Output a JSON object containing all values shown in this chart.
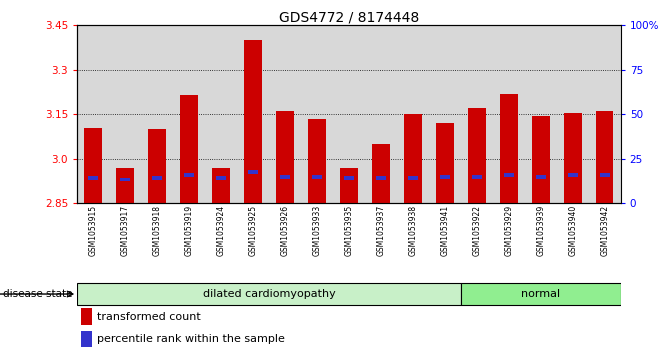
{
  "title": "GDS4772 / 8174448",
  "samples": [
    "GSM1053915",
    "GSM1053917",
    "GSM1053918",
    "GSM1053919",
    "GSM1053924",
    "GSM1053925",
    "GSM1053926",
    "GSM1053933",
    "GSM1053935",
    "GSM1053937",
    "GSM1053938",
    "GSM1053941",
    "GSM1053922",
    "GSM1053929",
    "GSM1053939",
    "GSM1053940",
    "GSM1053942"
  ],
  "bar_heights": [
    3.105,
    2.97,
    3.1,
    3.215,
    2.97,
    3.4,
    3.16,
    3.135,
    2.97,
    3.05,
    3.15,
    3.12,
    3.17,
    3.22,
    3.145,
    3.155,
    3.16
  ],
  "blue_heights": [
    2.935,
    2.93,
    2.935,
    2.945,
    2.935,
    2.955,
    2.94,
    2.94,
    2.935,
    2.935,
    2.935,
    2.94,
    2.94,
    2.945,
    2.94,
    2.945,
    2.945
  ],
  "disease_groups": [
    {
      "label": "dilated cardiomyopathy",
      "start": 0,
      "end": 12,
      "color": "#c8f0c8"
    },
    {
      "label": "normal",
      "start": 12,
      "end": 17,
      "color": "#90ee90"
    }
  ],
  "ymin": 2.85,
  "ymax": 3.45,
  "y_ticks_left": [
    2.85,
    3.0,
    3.15,
    3.3,
    3.45
  ],
  "y_ticks_right_vals": [
    0,
    25,
    50,
    75,
    100
  ],
  "y_ticks_right_labels": [
    "0",
    "25",
    "50",
    "75",
    "100%"
  ],
  "grid_lines": [
    3.0,
    3.15,
    3.3
  ],
  "bar_color": "#cc0000",
  "blue_color": "#3333cc",
  "bar_width": 0.55,
  "disease_state_label": "disease state",
  "legend_items": [
    {
      "label": "transformed count",
      "color": "#cc0000"
    },
    {
      "label": "percentile rank within the sample",
      "color": "#3333cc"
    }
  ]
}
